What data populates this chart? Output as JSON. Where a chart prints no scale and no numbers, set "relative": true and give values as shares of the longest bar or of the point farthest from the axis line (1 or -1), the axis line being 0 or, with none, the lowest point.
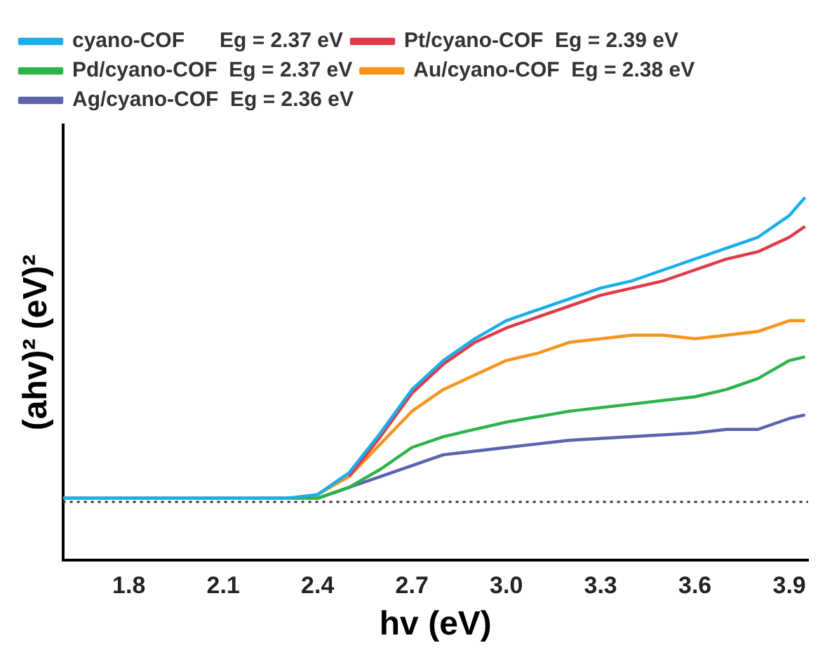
{
  "chart_data": {
    "type": "line",
    "xlabel": "hv (eV)",
    "ylabel": "(ahv)² (eV)²",
    "relative": true,
    "xlim": [
      1.59,
      3.96
    ],
    "xticks": [
      1.8,
      2.1,
      2.4,
      2.7,
      {
        "value": 3,
        "label": "3.0"
      },
      3.3,
      3.6,
      3.9
    ],
    "legend": "top left",
    "marker": "none",
    "line_style": "solid",
    "grid": false,
    "ref_lines": [
      {
        "axis": "y",
        "value": 0.16,
        "color": "#333333",
        "line_style": "dotted"
      }
    ],
    "series": [
      {
        "name": "cyano-COF      Eg = 2.37 eV",
        "color": "#1aaee8",
        "x": [
          1.59,
          2.0,
          2.3,
          2.4,
          2.5,
          2.6,
          2.7,
          2.8,
          2.9,
          3.0,
          3.1,
          3.2,
          3.3,
          3.4,
          3.5,
          3.6,
          3.7,
          3.8,
          3.9,
          3.95
        ],
        "values": [
          0.17,
          0.17,
          0.17,
          0.18,
          0.24,
          0.35,
          0.47,
          0.55,
          0.61,
          0.66,
          0.69,
          0.72,
          0.75,
          0.77,
          0.8,
          0.83,
          0.86,
          0.89,
          0.95,
          1.0
        ]
      },
      {
        "name": "Pt/cyano-COF  Eg = 2.39 eV",
        "color": "#e03a4a",
        "x": [
          2.5,
          2.6,
          2.7,
          2.8,
          2.9,
          3.0,
          3.1,
          3.2,
          3.3,
          3.4,
          3.5,
          3.6,
          3.7,
          3.8,
          3.9,
          3.95
        ],
        "values": [
          0.23,
          0.34,
          0.46,
          0.54,
          0.6,
          0.64,
          0.67,
          0.7,
          0.73,
          0.75,
          0.77,
          0.8,
          0.83,
          0.85,
          0.89,
          0.92
        ]
      },
      {
        "name": "Pd/cyano-COF  Eg = 2.37 eV",
        "color": "#2db34a",
        "x": [
          1.59,
          2.0,
          2.3,
          2.4,
          2.5,
          2.6,
          2.7,
          2.8,
          2.9,
          3.0,
          3.2,
          3.4,
          3.6,
          3.7,
          3.8,
          3.9,
          3.95
        ],
        "values": [
          0.17,
          0.17,
          0.17,
          0.17,
          0.2,
          0.25,
          0.31,
          0.34,
          0.36,
          0.38,
          0.41,
          0.43,
          0.45,
          0.47,
          0.5,
          0.55,
          0.56
        ]
      },
      {
        "name": "Au/cyano-COF  Eg = 2.38 eV",
        "color": "#f7941d",
        "x": [
          2.4,
          2.5,
          2.6,
          2.7,
          2.8,
          2.9,
          3.0,
          3.1,
          3.2,
          3.3,
          3.4,
          3.5,
          3.6,
          3.7,
          3.8,
          3.9,
          3.95
        ],
        "values": [
          0.18,
          0.23,
          0.32,
          0.41,
          0.47,
          0.51,
          0.55,
          0.57,
          0.6,
          0.61,
          0.62,
          0.62,
          0.61,
          0.62,
          0.63,
          0.66,
          0.66
        ]
      },
      {
        "name": "Ag/cyano-COF  Eg = 2.36 eV",
        "color": "#5b63ad",
        "x": [
          2.3,
          2.4,
          2.5,
          2.6,
          2.7,
          2.8,
          2.9,
          3.0,
          3.2,
          3.4,
          3.6,
          3.7,
          3.8,
          3.9,
          3.95
        ],
        "values": [
          0.17,
          0.17,
          0.2,
          0.23,
          0.26,
          0.29,
          0.3,
          0.31,
          0.33,
          0.34,
          0.35,
          0.36,
          0.36,
          0.39,
          0.4
        ]
      }
    ]
  }
}
